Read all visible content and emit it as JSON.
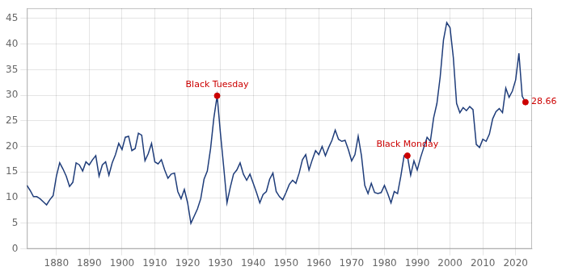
{
  "chart_data": {
    "type": "line",
    "color": "#1f3d7a",
    "x": [
      1871,
      1872,
      1873,
      1874,
      1875,
      1876,
      1877,
      1878,
      1879,
      1880,
      1881,
      1882,
      1883,
      1884,
      1885,
      1886,
      1887,
      1888,
      1889,
      1890,
      1891,
      1892,
      1893,
      1894,
      1895,
      1896,
      1897,
      1898,
      1899,
      1900,
      1901,
      1902,
      1903,
      1904,
      1905,
      1906,
      1907,
      1908,
      1909,
      1910,
      1911,
      1912,
      1913,
      1914,
      1915,
      1916,
      1917,
      1918,
      1919,
      1920,
      1921,
      1922,
      1923,
      1924,
      1925,
      1926,
      1927,
      1928,
      1929,
      1930,
      1931,
      1932,
      1933,
      1934,
      1935,
      1936,
      1937,
      1938,
      1939,
      1940,
      1941,
      1942,
      1943,
      1944,
      1945,
      1946,
      1947,
      1948,
      1949,
      1950,
      1951,
      1952,
      1953,
      1954,
      1955,
      1956,
      1957,
      1958,
      1959,
      1960,
      1961,
      1962,
      1963,
      1964,
      1965,
      1966,
      1967,
      1968,
      1969,
      1970,
      1971,
      1972,
      1973,
      1974,
      1975,
      1976,
      1977,
      1978,
      1979,
      1980,
      1981,
      1982,
      1983,
      1984,
      1985,
      1986,
      1987,
      1988,
      1989,
      1990,
      1991,
      1992,
      1993,
      1994,
      1995,
      1996,
      1997,
      1998,
      1999,
      2000,
      2001,
      2002,
      2003,
      2004,
      2005,
      2006,
      2007,
      2008,
      2009,
      2010,
      2011,
      2012,
      2013,
      2014,
      2015,
      2016,
      2017,
      2018,
      2019,
      2020,
      2021,
      2022,
      2023
    ],
    "values": [
      12.4,
      11.4,
      10.2,
      10.2,
      9.8,
      9.2,
      8.6,
      9.6,
      10.4,
      14.2,
      16.8,
      15.6,
      14.2,
      12.2,
      13.0,
      16.8,
      16.4,
      15.2,
      17.0,
      16.4,
      17.4,
      18.2,
      14.2,
      16.4,
      17.0,
      14.4,
      16.8,
      18.4,
      20.6,
      19.4,
      21.8,
      22.0,
      19.2,
      19.6,
      22.6,
      22.2,
      17.2,
      18.6,
      20.6,
      17.0,
      16.6,
      17.4,
      15.4,
      13.8,
      14.6,
      14.8,
      11.2,
      9.8,
      11.6,
      9.0,
      5.0,
      6.4,
      7.8,
      9.8,
      13.6,
      15.2,
      19.6,
      25.6,
      29.9,
      22.6,
      16.0,
      9.0,
      12.0,
      14.6,
      15.4,
      16.8,
      14.6,
      13.4,
      14.6,
      12.8,
      11.0,
      9.0,
      10.6,
      11.2,
      13.6,
      14.8,
      11.2,
      10.2,
      9.6,
      11.0,
      12.6,
      13.4,
      12.8,
      14.8,
      17.4,
      18.4,
      15.4,
      17.4,
      19.2,
      18.4,
      20.0,
      18.2,
      19.8,
      21.2,
      23.2,
      21.4,
      21.0,
      21.2,
      19.4,
      17.2,
      18.4,
      22.0,
      18.2,
      12.4,
      10.8,
      12.8,
      11.0,
      10.8,
      11.0,
      12.4,
      10.8,
      9.0,
      11.2,
      10.8,
      14.2,
      18.2,
      18.2,
      14.4,
      17.2,
      15.4,
      17.8,
      19.8,
      21.8,
      21.0,
      25.6,
      28.4,
      33.6,
      40.8,
      44.2,
      43.2,
      37.4,
      28.4,
      26.6,
      27.6,
      27.0,
      27.8,
      27.2,
      20.4,
      19.8,
      21.4,
      21.0,
      22.4,
      25.4,
      26.8,
      27.4,
      26.6,
      31.4,
      29.6,
      30.8,
      33.0,
      38.2,
      29.8,
      28.66
    ],
    "xlim": [
      1871,
      2025
    ],
    "xticks": [
      1880,
      1890,
      1900,
      1910,
      1920,
      1930,
      1940,
      1950,
      1960,
      1970,
      1980,
      1990,
      2000,
      2010,
      2020
    ],
    "ylim": [
      0,
      47
    ],
    "yticks": [
      0,
      5,
      10,
      15,
      20,
      25,
      30,
      35,
      40,
      45
    ],
    "grid": true,
    "annotations": [
      {
        "text": "Black Tuesday",
        "x": 1929,
        "y": 29.9,
        "color": "#cc0000"
      },
      {
        "text": "Black Monday",
        "x": 1987,
        "y": 18.2,
        "color": "#cc0000"
      },
      {
        "text": "28.66",
        "x": 2023,
        "y": 28.66,
        "color": "#cc0000"
      }
    ]
  }
}
